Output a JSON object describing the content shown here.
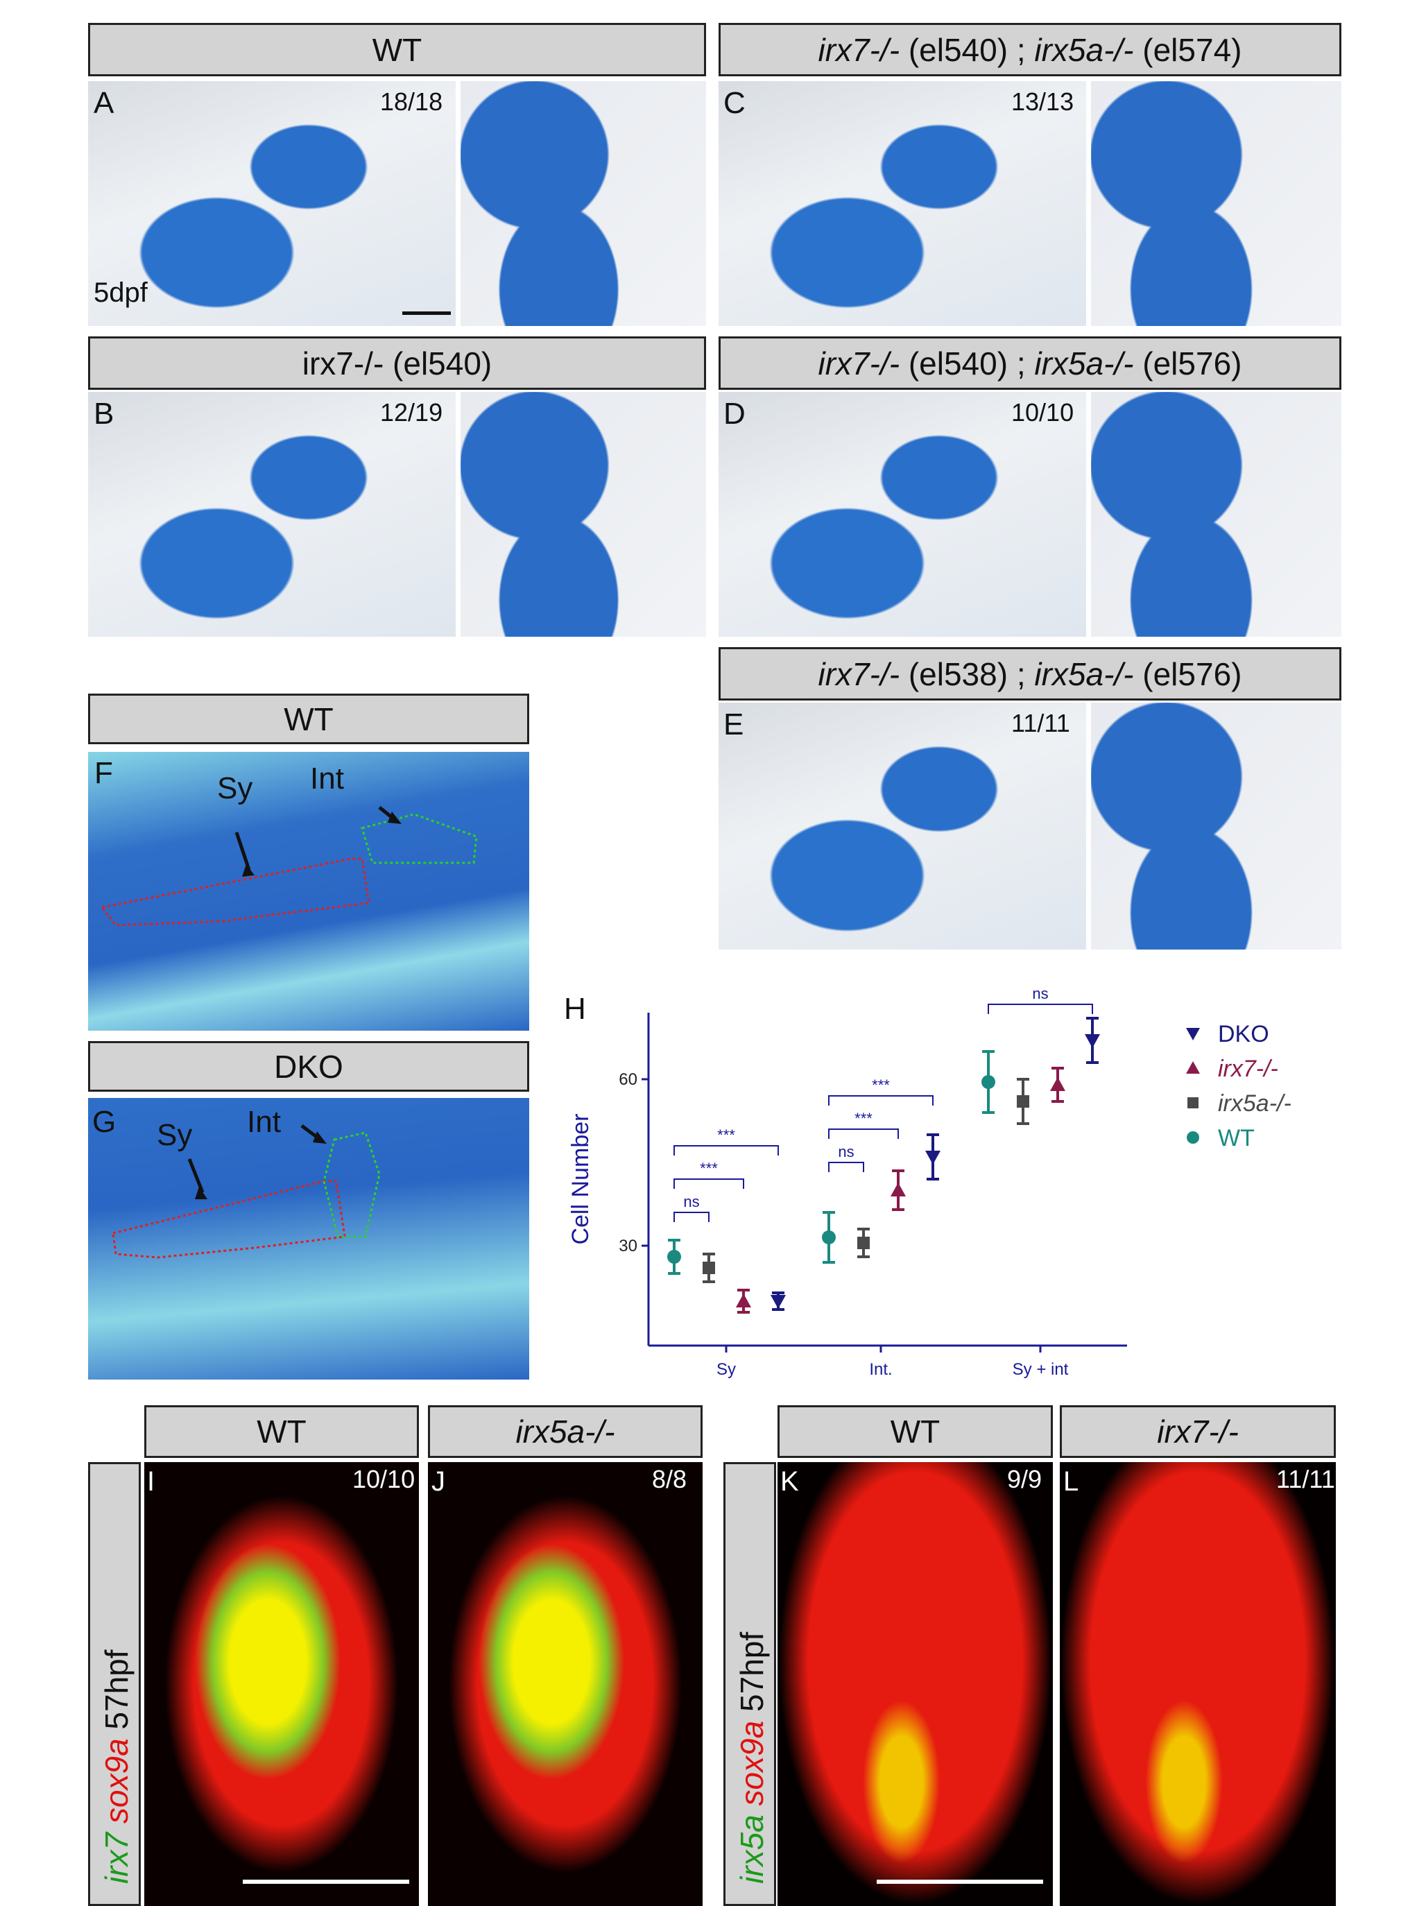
{
  "headers": {
    "wt_a": "WT",
    "c_gene1": "irx7-/-",
    "c_allele1": "(el540)",
    "c_sep": ";",
    "c_gene2": "irx5a-/-",
    "c_allele2": "(el574)",
    "b": "irx7-/- (el540)",
    "d_gene1": "irx7-/-",
    "d_allele1": "(el540)",
    "d_sep": ";",
    "d_gene2": "irx5a-/-",
    "d_allele2": "(el576)",
    "e_gene1": "irx7-/-",
    "e_allele1": "(el538)",
    "e_sep": ";",
    "e_gene2": "irx5a-/-",
    "e_allele2": "(el576)",
    "wt_f": "WT",
    "dko_g": "DKO",
    "wt_i": "WT",
    "j": "irx5a-/-",
    "wt_k": "WT",
    "l": "irx7-/-"
  },
  "panels": {
    "A": {
      "label": "A",
      "count": "18/18",
      "stage": "5dpf"
    },
    "B": {
      "label": "B",
      "count": "12/19"
    },
    "C": {
      "label": "C",
      "count": "13/13"
    },
    "D": {
      "label": "D",
      "count": "10/10"
    },
    "E": {
      "label": "E",
      "count": "11/11"
    },
    "F": {
      "label": "F",
      "sy": "Sy",
      "int": "Int"
    },
    "G": {
      "label": "G",
      "sy": "Sy",
      "int": "Int"
    },
    "I": {
      "label": "I",
      "count": "10/10"
    },
    "J": {
      "label": "J",
      "count": "8/8"
    },
    "K": {
      "label": "K",
      "count": "9/9"
    },
    "L": {
      "label": "L",
      "count": "11/11"
    }
  },
  "side_labels": {
    "left": {
      "gene_green": "irx7",
      "gene_red": "sox9a",
      "stage": "57hpf"
    },
    "right": {
      "gene_green": "irx5a",
      "gene_red": "sox9a",
      "stage": "57hpf"
    }
  },
  "colors": {
    "DKO": "#1a1a80",
    "irx7": "#8b1a4a",
    "irx5a": "#4a4a4a",
    "WT": "#1a8a80",
    "axis": "#1a1a9a"
  },
  "chart_data": {
    "type": "scatter",
    "panel_label": "H",
    "ylabel": "Cell Number",
    "categories": [
      "Sy",
      "Int.",
      "Sy + int"
    ],
    "ylim": [
      12,
      72
    ],
    "yticks": [
      30,
      60
    ],
    "legend_position": "right",
    "series": [
      {
        "name": "DKO",
        "marker": "triangle-down",
        "values": [
          20,
          46,
          67
        ],
        "err": [
          1.5,
          4,
          4
        ]
      },
      {
        "name": "irx7-/-",
        "marker": "triangle-up",
        "values": [
          20,
          40,
          59
        ],
        "err": [
          2,
          3.5,
          3
        ]
      },
      {
        "name": "irx5a-/-",
        "marker": "square",
        "values": [
          26,
          30.5,
          56
        ],
        "err": [
          2.5,
          2.5,
          4
        ]
      },
      {
        "name": "WT",
        "marker": "circle",
        "values": [
          28,
          31.5,
          59.5
        ],
        "err": [
          3,
          4.5,
          5.5
        ]
      }
    ],
    "significance": [
      {
        "label": "ns"
      },
      {
        "label": "***"
      },
      {
        "label": "***"
      },
      {
        "label": "ns"
      },
      {
        "label": "***"
      },
      {
        "label": "***"
      },
      {
        "label": "ns"
      }
    ]
  }
}
